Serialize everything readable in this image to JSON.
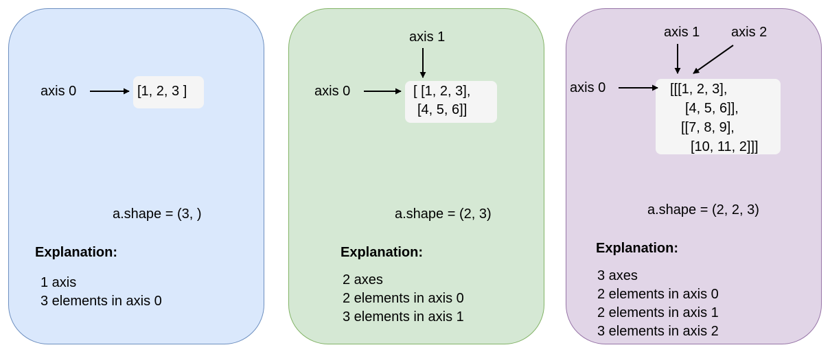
{
  "panels": [
    {
      "axis_labels": [
        "axis 0"
      ],
      "array_lines": [
        "[1, 2, 3 ]"
      ],
      "shape": "a.shape = (3, )",
      "explanation_title": "Explanation:",
      "explanation_lines": [
        "1 axis",
        "3 elements in axis 0"
      ],
      "fill": "#dae8fc",
      "stroke": "#6c8ebf"
    },
    {
      "axis_labels": [
        "axis 0",
        "axis 1"
      ],
      "array_lines": [
        "[ [1, 2, 3],",
        "[4, 5, 6]]"
      ],
      "shape": "a.shape = (2, 3)",
      "explanation_title": "Explanation:",
      "explanation_lines": [
        "2 axes",
        "2 elements in axis 0",
        "3 elements in axis 1"
      ],
      "fill": "#d5e8d4",
      "stroke": "#82b366"
    },
    {
      "axis_labels": [
        "axis 0",
        "axis 1",
        "axis 2"
      ],
      "array_lines": [
        "[[[1, 2, 3],",
        "[4, 5, 6]],",
        "[[7, 8, 9],",
        "[10, 11, 2]]]"
      ],
      "shape": "a.shape = (2, 2, 3)",
      "explanation_title": "Explanation:",
      "explanation_lines": [
        "3 axes",
        "2 elements in axis 0",
        "2 elements in axis 1",
        "3 elements in axis 2"
      ],
      "fill": "#e1d5e7",
      "stroke": "#9673a6"
    }
  ]
}
